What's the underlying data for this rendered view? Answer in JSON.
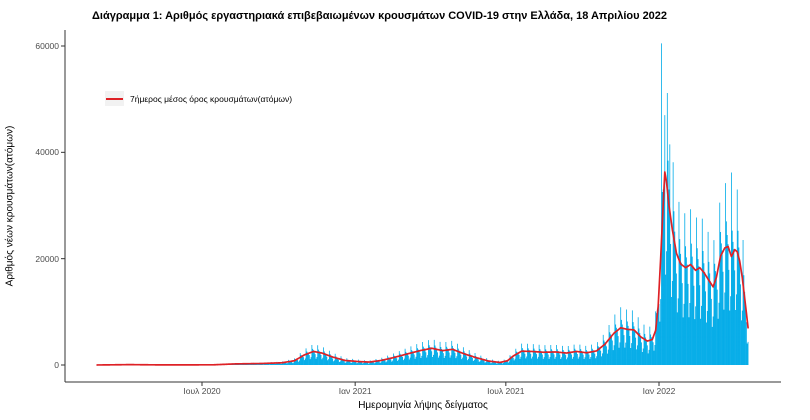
{
  "title": "Διάγραμμα 1: Αριθμός εργαστηριακά επιβεβαιωμένων κρουσμάτων COVID-19 στην Ελλάδα, 18 Απριλίου 2022",
  "legend": {
    "avg_label": "7ήμερος μέσος όρος κρουσμάτων(ατόμων)",
    "line_color": "#de2126",
    "key_background": "#f2f2f2"
  },
  "axes": {
    "x_label": "Ημερομηνία λήψης δείγματος",
    "y_label": "Αριθμός νέων κρουσμάτων(ατόμων)",
    "x_ticks": [
      {
        "label": "Ιουλ 2020",
        "date": "2020-07-01"
      },
      {
        "label": "Ιαν 2021",
        "date": "2021-01-01"
      },
      {
        "label": "Ιουλ 2021",
        "date": "2021-07-01"
      },
      {
        "label": "Ιαν 2022",
        "date": "2022-01-01"
      }
    ],
    "y_ticks": [
      {
        "label": "0",
        "value": 0
      },
      {
        "label": "20000",
        "value": 20000
      },
      {
        "label": "40000",
        "value": 40000
      },
      {
        "label": "60000",
        "value": 60000
      }
    ]
  },
  "chart_data": {
    "type": "bar",
    "title": "Διάγραμμα 1: Αριθμός εργαστηριακά επιβεβαιωμένων κρουσμάτων COVID-19 στην Ελλάδα, 18 Απριλίου 2022",
    "xlabel": "Ημερομηνία λήψης δείγματος",
    "ylabel": "Αριθμός νέων κρουσμάτων(ατόμων)",
    "x_range": [
      "2020-02-26",
      "2022-04-18"
    ],
    "ylim": [
      0,
      62000
    ],
    "grid": false,
    "legend_position": "top-left-inside",
    "bar_color": "#00abe8",
    "line_color": "#de2126",
    "avg_line_points": [
      [
        "2020-02-26",
        5
      ],
      [
        "2020-04-05",
        70
      ],
      [
        "2020-05-10",
        25
      ],
      [
        "2020-06-15",
        25
      ],
      [
        "2020-07-15",
        40
      ],
      [
        "2020-08-10",
        210
      ],
      [
        "2020-09-10",
        280
      ],
      [
        "2020-10-05",
        420
      ],
      [
        "2020-10-20",
        800
      ],
      [
        "2020-11-01",
        1900
      ],
      [
        "2020-11-12",
        2550
      ],
      [
        "2020-11-22",
        2250
      ],
      [
        "2020-12-05",
        1500
      ],
      [
        "2020-12-20",
        850
      ],
      [
        "2021-01-05",
        650
      ],
      [
        "2021-01-18",
        550
      ],
      [
        "2021-02-01",
        850
      ],
      [
        "2021-02-15",
        1350
      ],
      [
        "2021-03-05",
        2100
      ],
      [
        "2021-03-20",
        2700
      ],
      [
        "2021-04-03",
        3150
      ],
      [
        "2021-04-16",
        2700
      ],
      [
        "2021-04-28",
        2950
      ],
      [
        "2021-05-12",
        2100
      ],
      [
        "2021-05-26",
        1400
      ],
      [
        "2021-06-10",
        750
      ],
      [
        "2021-06-24",
        480
      ],
      [
        "2021-07-03",
        800
      ],
      [
        "2021-07-10",
        1700
      ],
      [
        "2021-07-20",
        2600
      ],
      [
        "2021-08-01",
        2550
      ],
      [
        "2021-08-15",
        2400
      ],
      [
        "2021-08-30",
        2450
      ],
      [
        "2021-09-12",
        2250
      ],
      [
        "2021-09-24",
        2550
      ],
      [
        "2021-10-06",
        2300
      ],
      [
        "2021-10-18",
        2650
      ],
      [
        "2021-10-28",
        3900
      ],
      [
        "2021-11-08",
        6000
      ],
      [
        "2021-11-16",
        7000
      ],
      [
        "2021-11-24",
        6700
      ],
      [
        "2021-12-02",
        6600
      ],
      [
        "2021-12-10",
        5300
      ],
      [
        "2021-12-18",
        4500
      ],
      [
        "2021-12-24",
        4800
      ],
      [
        "2021-12-28",
        6500
      ],
      [
        "2021-12-31",
        11000
      ],
      [
        "2022-01-03",
        20000
      ],
      [
        "2022-01-06",
        30000
      ],
      [
        "2022-01-08",
        36300
      ],
      [
        "2022-01-10",
        34500
      ],
      [
        "2022-01-13",
        30000
      ],
      [
        "2022-01-17",
        25500
      ],
      [
        "2022-01-22",
        21000
      ],
      [
        "2022-01-27",
        19000
      ],
      [
        "2022-02-02",
        18300
      ],
      [
        "2022-02-08",
        18900
      ],
      [
        "2022-02-14",
        17800
      ],
      [
        "2022-02-19",
        18300
      ],
      [
        "2022-02-24",
        17400
      ],
      [
        "2022-03-02",
        15900
      ],
      [
        "2022-03-07",
        14700
      ],
      [
        "2022-03-11",
        16500
      ],
      [
        "2022-03-16",
        20500
      ],
      [
        "2022-03-21",
        22000
      ],
      [
        "2022-03-25",
        22300
      ],
      [
        "2022-03-29",
        20400
      ],
      [
        "2022-04-02",
        21700
      ],
      [
        "2022-04-05",
        21300
      ],
      [
        "2022-04-08",
        19500
      ],
      [
        "2022-04-11",
        16500
      ],
      [
        "2022-04-14",
        12500
      ],
      [
        "2022-04-16",
        9800
      ],
      [
        "2022-04-18",
        7000
      ]
    ],
    "daily_bar_weekday_factors": [
      0.48,
      0.62,
      1.55,
      1.22,
      1.1,
      1.02,
      0.82
    ],
    "bar_outliers": [
      [
        "2022-01-04",
        60500
      ],
      [
        "2022-01-08",
        47000
      ],
      [
        "2022-01-14",
        41500
      ],
      [
        "2022-03-29",
        36200
      ]
    ]
  }
}
